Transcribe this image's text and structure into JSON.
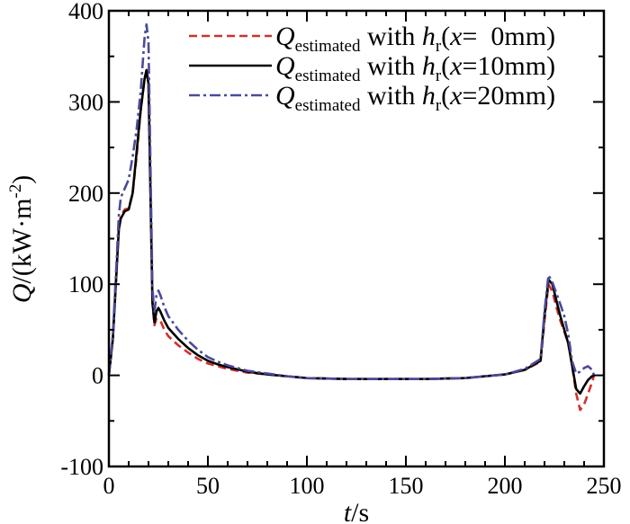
{
  "chart_data": {
    "type": "line",
    "xlabel_var": "t",
    "xlabel_unit": "/s",
    "ylabel_var": "Q",
    "ylabel_unit_pre": "/(kW·m",
    "ylabel_unit_sup": "-2",
    "ylabel_unit_post": ")",
    "xlim": [
      0,
      250
    ],
    "ylim": [
      -100,
      400
    ],
    "xticks": [
      0,
      50,
      100,
      150,
      200,
      250
    ],
    "yticks": [
      -100,
      0,
      100,
      200,
      300,
      400
    ],
    "grid": false,
    "legend_position": "top-right",
    "legend_parts": {
      "q": "Q",
      "sub": "estimated",
      "with": " with ",
      "h": "h",
      "hsub": "r",
      "open": "(",
      "x": "x"
    },
    "series": [
      {
        "legend_suffix": "=  0mm)",
        "color": "#d0312d",
        "dash": "dashed",
        "points": [
          [
            0,
            0
          ],
          [
            2,
            40
          ],
          [
            4,
            120
          ],
          [
            5,
            160
          ],
          [
            6,
            175
          ],
          [
            8,
            182
          ],
          [
            10,
            183
          ],
          [
            12,
            200
          ],
          [
            14,
            240
          ],
          [
            16,
            290
          ],
          [
            18,
            325
          ],
          [
            19,
            335
          ],
          [
            20,
            320
          ],
          [
            21,
            200
          ],
          [
            22,
            80
          ],
          [
            23,
            55
          ],
          [
            24,
            62
          ],
          [
            26,
            60
          ],
          [
            28,
            50
          ],
          [
            30,
            43
          ],
          [
            35,
            33
          ],
          [
            40,
            25
          ],
          [
            45,
            18
          ],
          [
            50,
            13
          ],
          [
            55,
            10
          ],
          [
            60,
            7
          ],
          [
            70,
            3
          ],
          [
            80,
            1
          ],
          [
            90,
            -1
          ],
          [
            100,
            -3
          ],
          [
            120,
            -4
          ],
          [
            140,
            -4
          ],
          [
            160,
            -4
          ],
          [
            180,
            -3
          ],
          [
            200,
            1
          ],
          [
            210,
            6
          ],
          [
            218,
            15
          ],
          [
            220,
            60
          ],
          [
            222,
            100
          ],
          [
            224,
            92
          ],
          [
            226,
            75
          ],
          [
            228,
            60
          ],
          [
            230,
            48
          ],
          [
            232,
            35
          ],
          [
            234,
            10
          ],
          [
            236,
            -20
          ],
          [
            238,
            -38
          ],
          [
            240,
            -32
          ],
          [
            242,
            -20
          ],
          [
            244,
            -8
          ],
          [
            245,
            0
          ]
        ]
      },
      {
        "legend_suffix": "=10mm)",
        "color": "#000000",
        "dash": "solid",
        "points": [
          [
            0,
            0
          ],
          [
            2,
            40
          ],
          [
            4,
            120
          ],
          [
            5,
            160
          ],
          [
            6,
            172
          ],
          [
            8,
            180
          ],
          [
            10,
            182
          ],
          [
            12,
            200
          ],
          [
            14,
            245
          ],
          [
            16,
            290
          ],
          [
            18,
            325
          ],
          [
            19,
            335
          ],
          [
            20,
            320
          ],
          [
            21,
            200
          ],
          [
            22,
            80
          ],
          [
            23,
            58
          ],
          [
            24,
            70
          ],
          [
            25,
            74
          ],
          [
            26,
            70
          ],
          [
            28,
            60
          ],
          [
            30,
            52
          ],
          [
            35,
            40
          ],
          [
            40,
            30
          ],
          [
            45,
            22
          ],
          [
            50,
            16
          ],
          [
            55,
            12
          ],
          [
            60,
            9
          ],
          [
            70,
            4
          ],
          [
            80,
            1
          ],
          [
            90,
            -1
          ],
          [
            100,
            -3
          ],
          [
            120,
            -4
          ],
          [
            140,
            -4
          ],
          [
            160,
            -4
          ],
          [
            180,
            -3
          ],
          [
            200,
            1
          ],
          [
            210,
            6
          ],
          [
            218,
            16
          ],
          [
            220,
            65
          ],
          [
            222,
            105
          ],
          [
            224,
            100
          ],
          [
            226,
            82
          ],
          [
            228,
            65
          ],
          [
            230,
            50
          ],
          [
            232,
            35
          ],
          [
            234,
            10
          ],
          [
            236,
            -15
          ],
          [
            238,
            -20
          ],
          [
            240,
            -12
          ],
          [
            242,
            -5
          ],
          [
            244,
            -1
          ],
          [
            245,
            0
          ]
        ]
      },
      {
        "legend_suffix": "=20mm)",
        "color": "#4a4a9c",
        "dash": "dashdot",
        "points": [
          [
            0,
            0
          ],
          [
            2,
            45
          ],
          [
            4,
            130
          ],
          [
            5,
            175
          ],
          [
            6,
            195
          ],
          [
            8,
            205
          ],
          [
            10,
            215
          ],
          [
            12,
            240
          ],
          [
            14,
            270
          ],
          [
            16,
            310
          ],
          [
            18,
            370
          ],
          [
            19,
            385
          ],
          [
            20,
            365
          ],
          [
            21,
            230
          ],
          [
            22,
            95
          ],
          [
            23,
            70
          ],
          [
            24,
            88
          ],
          [
            25,
            93
          ],
          [
            26,
            88
          ],
          [
            28,
            75
          ],
          [
            30,
            65
          ],
          [
            35,
            50
          ],
          [
            40,
            38
          ],
          [
            45,
            28
          ],
          [
            50,
            20
          ],
          [
            55,
            15
          ],
          [
            60,
            11
          ],
          [
            70,
            5
          ],
          [
            80,
            2
          ],
          [
            90,
            -1
          ],
          [
            100,
            -3
          ],
          [
            120,
            -4
          ],
          [
            140,
            -4
          ],
          [
            160,
            -4
          ],
          [
            180,
            -3
          ],
          [
            200,
            1
          ],
          [
            210,
            7
          ],
          [
            218,
            18
          ],
          [
            220,
            70
          ],
          [
            222,
            110
          ],
          [
            224,
            102
          ],
          [
            226,
            90
          ],
          [
            228,
            78
          ],
          [
            230,
            65
          ],
          [
            232,
            45
          ],
          [
            234,
            15
          ],
          [
            236,
            2
          ],
          [
            238,
            4
          ],
          [
            240,
            8
          ],
          [
            242,
            10
          ],
          [
            244,
            6
          ],
          [
            245,
            0
          ]
        ]
      }
    ]
  }
}
